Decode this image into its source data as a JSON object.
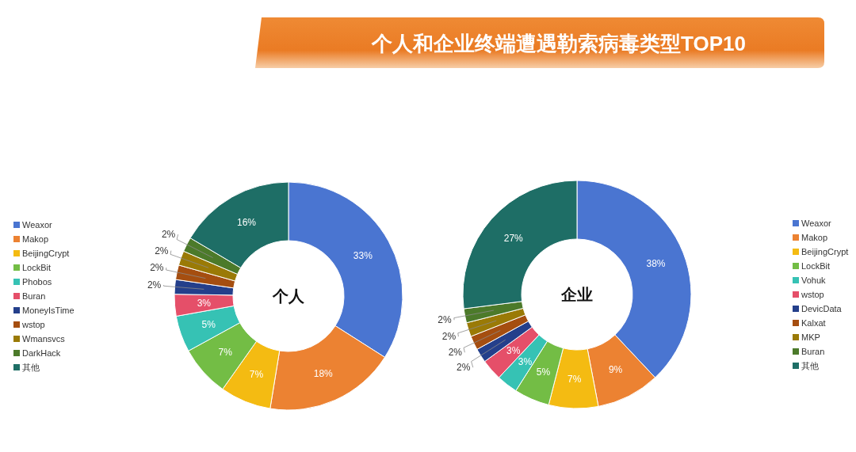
{
  "chart_data": [
    {
      "type": "donut",
      "subtitle": "个人",
      "categories": [
        "Weaxor",
        "Makop",
        "BeijingCrypt",
        "LockBit",
        "Phobos",
        "Buran",
        "MoneyIsTime",
        "wstop",
        "Wmansvcs",
        "DarkHack",
        "其他"
      ],
      "values": [
        33,
        18,
        7,
        7,
        5,
        3,
        2,
        2,
        2,
        2,
        16
      ],
      "value_labels": [
        "33%",
        "18%",
        "7%",
        "7%",
        "5%",
        "3%",
        "2%",
        "2%",
        "2%",
        "2%",
        "16%"
      ],
      "colors": [
        "#4a75d1",
        "#ec8232",
        "#f4bb12",
        "#73bd45",
        "#36c2b4",
        "#e54f69",
        "#243f8b",
        "#a54e10",
        "#9a7a06",
        "#4c7a2a",
        "#1e6e66"
      ],
      "legend": "left"
    },
    {
      "type": "donut",
      "title": "个人和企业终端遭遇勒索病毒类型TOP10",
      "subtitle": "企业",
      "categories": [
        "Weaxor",
        "Makop",
        "BeijingCrypt",
        "LockBit",
        "Vohuk",
        "wstop",
        "DevicData",
        "Kalxat",
        "MKP",
        "Buran",
        "其他"
      ],
      "values": [
        38,
        9,
        7,
        5,
        3,
        3,
        2,
        2,
        2,
        2,
        27
      ],
      "value_labels": [
        "38%",
        "9%",
        "7%",
        "5%",
        "3%",
        "3%",
        "2%",
        "2%",
        "2%",
        "2%",
        "27%"
      ],
      "colors": [
        "#4a75d1",
        "#ec8232",
        "#f4bb12",
        "#73bd45",
        "#36c2b4",
        "#e54f69",
        "#243f8b",
        "#a54e10",
        "#9a7a06",
        "#4c7a2a",
        "#1e6e66"
      ],
      "legend": "right"
    }
  ]
}
